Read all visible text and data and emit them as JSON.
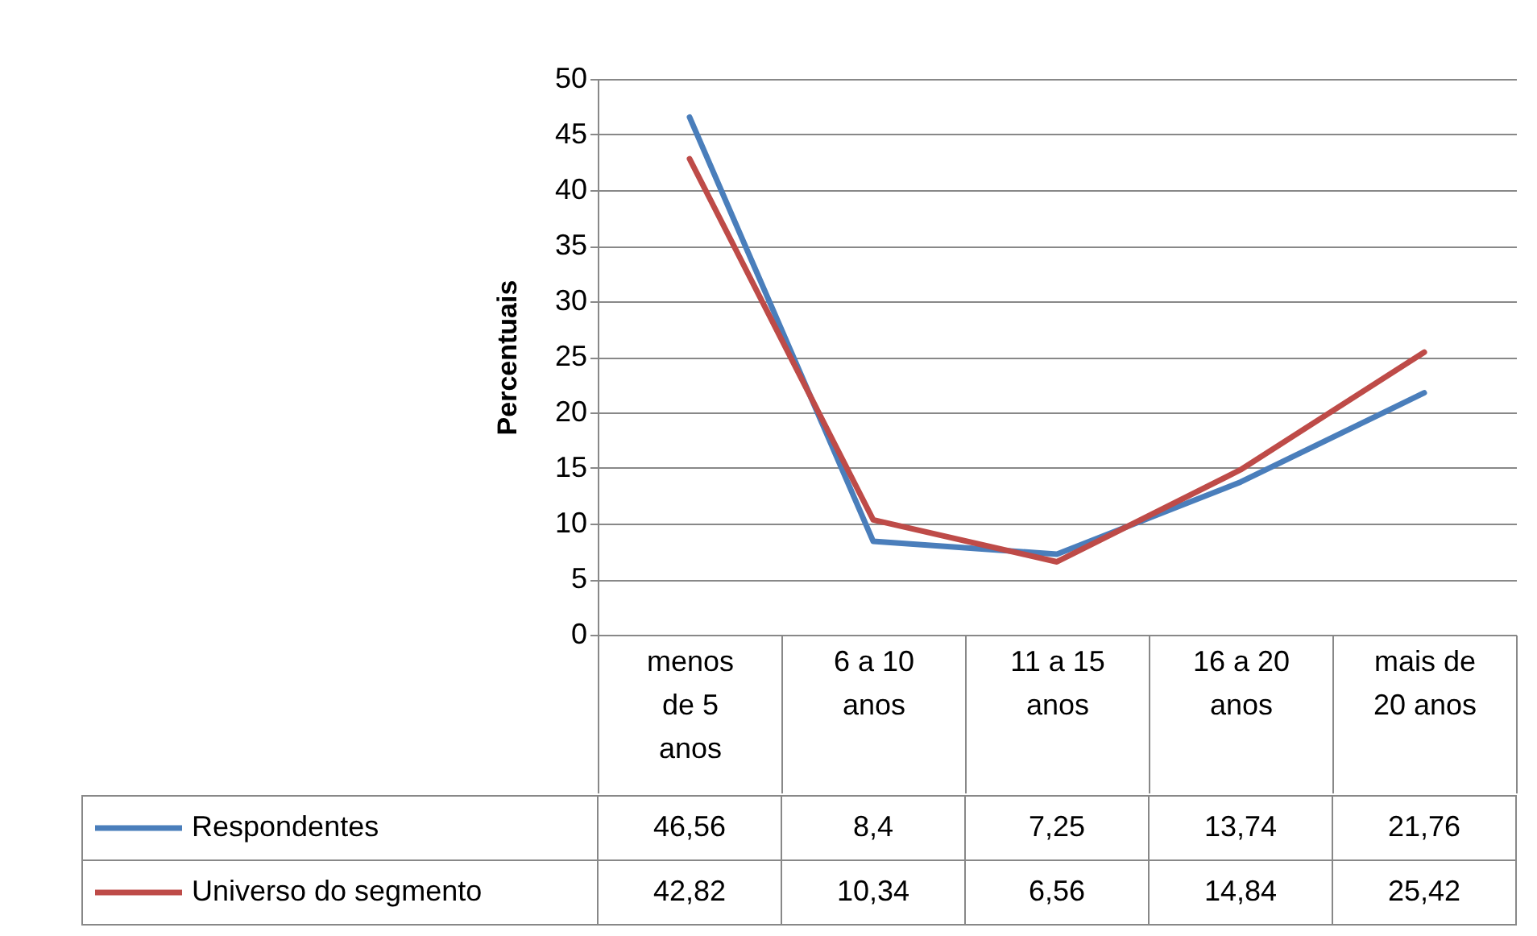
{
  "chart_data": {
    "type": "line",
    "ylabel": "Percentuais",
    "categories": [
      "menos de 5 anos",
      "6 a 10 anos",
      "11 a 15 anos",
      "16 a 20 anos",
      "mais de 20 anos"
    ],
    "series": [
      {
        "name": "Respondentes",
        "color": "#4a7ebb",
        "values": [
          46.56,
          8.4,
          7.25,
          13.74,
          21.76
        ],
        "value_labels": [
          "46,56",
          "8,4",
          "7,25",
          "13,74",
          "21,76"
        ]
      },
      {
        "name": "Universo do segmento",
        "color": "#be4b48",
        "values": [
          42.82,
          10.34,
          6.56,
          14.84,
          25.42
        ],
        "value_labels": [
          "42,82",
          "10,34",
          "6,56",
          "14,84",
          "25,42"
        ]
      }
    ],
    "ylim": [
      0,
      50
    ],
    "yticks": [
      0,
      5,
      10,
      15,
      20,
      25,
      30,
      35,
      40,
      45,
      50
    ],
    "grid": "y",
    "legend": "bottom",
    "line_style": "solid"
  }
}
